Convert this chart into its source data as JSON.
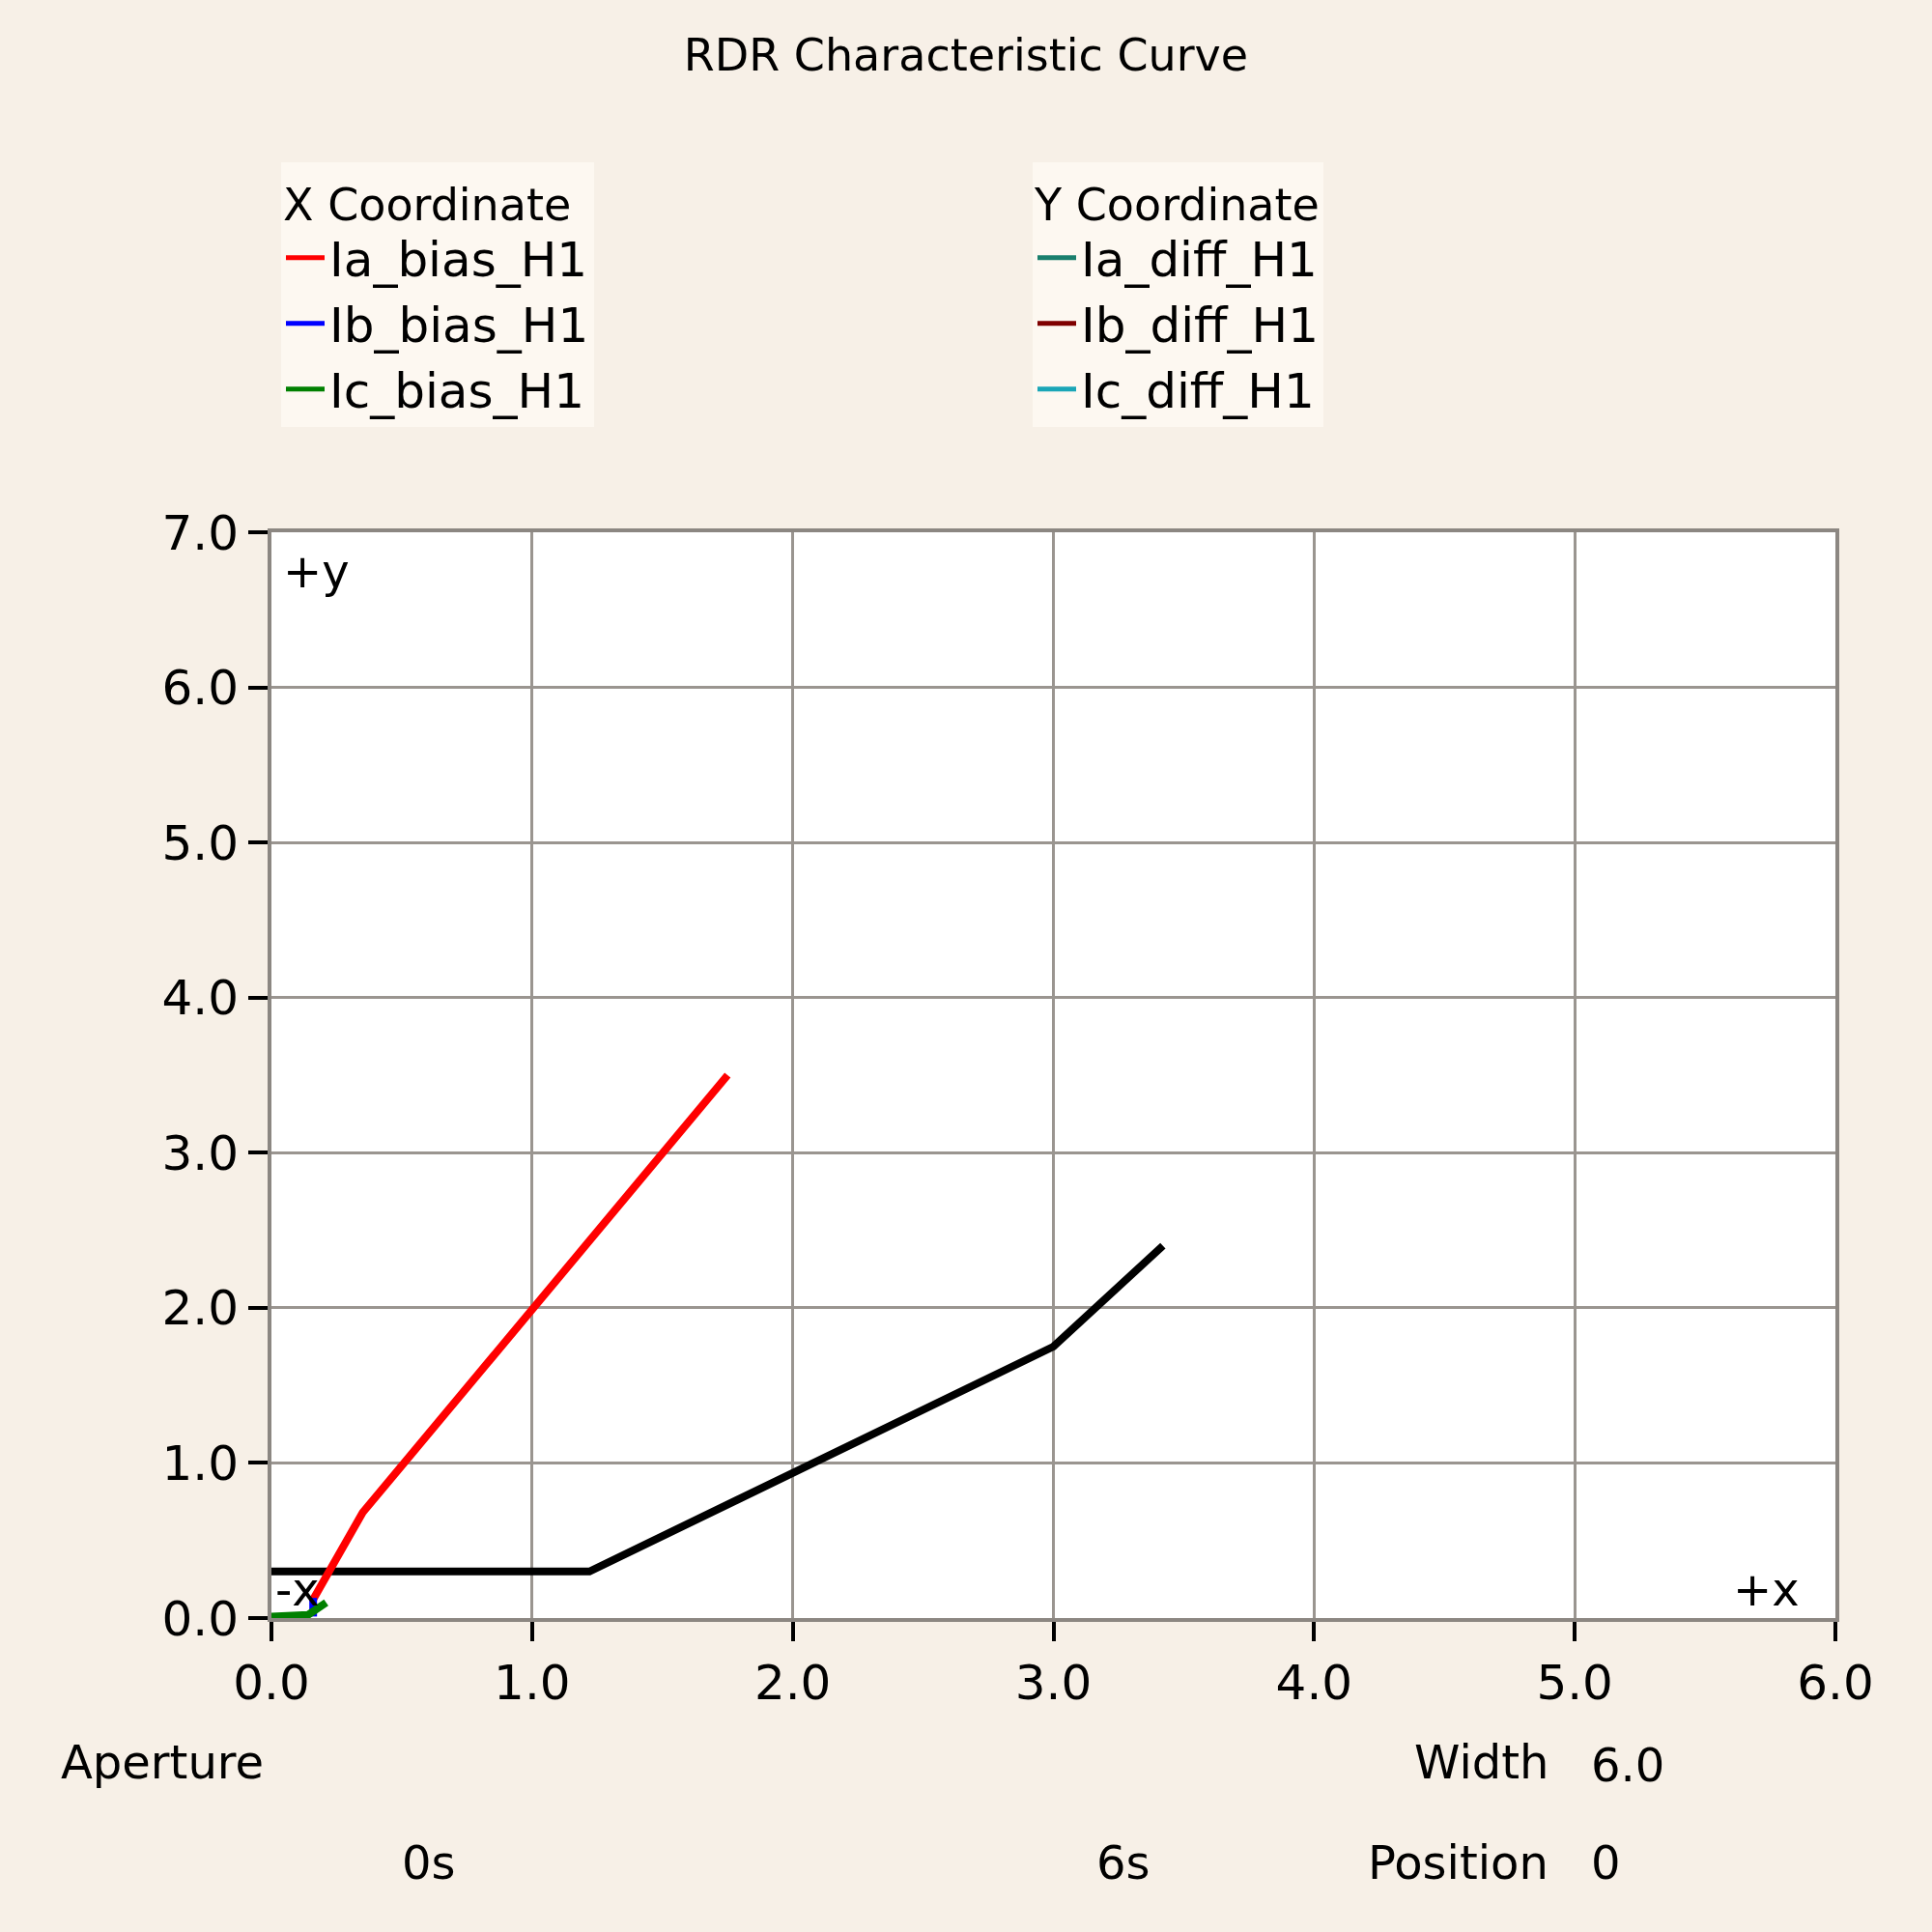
{
  "chart_data": {
    "type": "line",
    "title": "RDR Characteristic Curve",
    "legend_title": [
      "X Coordinate",
      "Y Coordinate"
    ],
    "xlim": [
      0,
      6
    ],
    "xticks": [
      {
        "value": 0,
        "label": "0.0"
      },
      {
        "value": 1,
        "label": "1.0"
      },
      {
        "value": 2,
        "label": "2.0"
      },
      {
        "value": 3,
        "label": "3.0"
      },
      {
        "value": 4,
        "label": "4.0"
      },
      {
        "value": 5,
        "label": "5.0"
      },
      {
        "value": 6,
        "label": "6.0"
      }
    ],
    "ylim": [
      0,
      7
    ],
    "yticks": [
      {
        "value": 0,
        "label": "0.0"
      },
      {
        "value": 1,
        "label": "1.0"
      },
      {
        "value": 2,
        "label": "2.0"
      },
      {
        "value": 3,
        "label": "3.0"
      },
      {
        "value": 4,
        "label": "4.0"
      },
      {
        "value": 5,
        "label": "5.0"
      },
      {
        "value": 6,
        "label": "6.0"
      },
      {
        "value": 7,
        "label": "7.0"
      }
    ],
    "series": [
      {
        "color": "#000000",
        "x": [
          0,
          1.22,
          3.0,
          3.42
        ],
        "values": [
          0.3,
          0.3,
          1.75,
          2.4
        ]
      },
      {
        "name": "Ia_bias_H1",
        "color": "#ff0000",
        "x": [
          0.16,
          0.35,
          1.75
        ],
        "values": [
          0.12,
          0.68,
          3.5
        ]
      },
      {
        "name": "Ib_bias_H1",
        "color": "#0000ff",
        "x": [
          0.16,
          0.16
        ],
        "values": [
          0.01,
          0.13
        ]
      },
      {
        "name": "Ic_bias_H1",
        "color": "#008000",
        "x": [
          0,
          0.14,
          0.21
        ],
        "values": [
          0.01,
          0.02,
          0.1
        ]
      },
      {
        "name": "Ia_diff_H1",
        "color": "#1a7f6d"
      },
      {
        "name": "Ib_diff_H1",
        "color": "#7f0000"
      },
      {
        "name": "Ic_diff_H1",
        "color": "#1aa6b7"
      }
    ],
    "annotations": [
      "+y",
      "-x",
      "+x",
      "Aperture",
      "Width",
      "6.0",
      "0s",
      "6s",
      "Position",
      "0"
    ],
    "grid": true,
    "legend": "top",
    "line_style": "solid"
  }
}
